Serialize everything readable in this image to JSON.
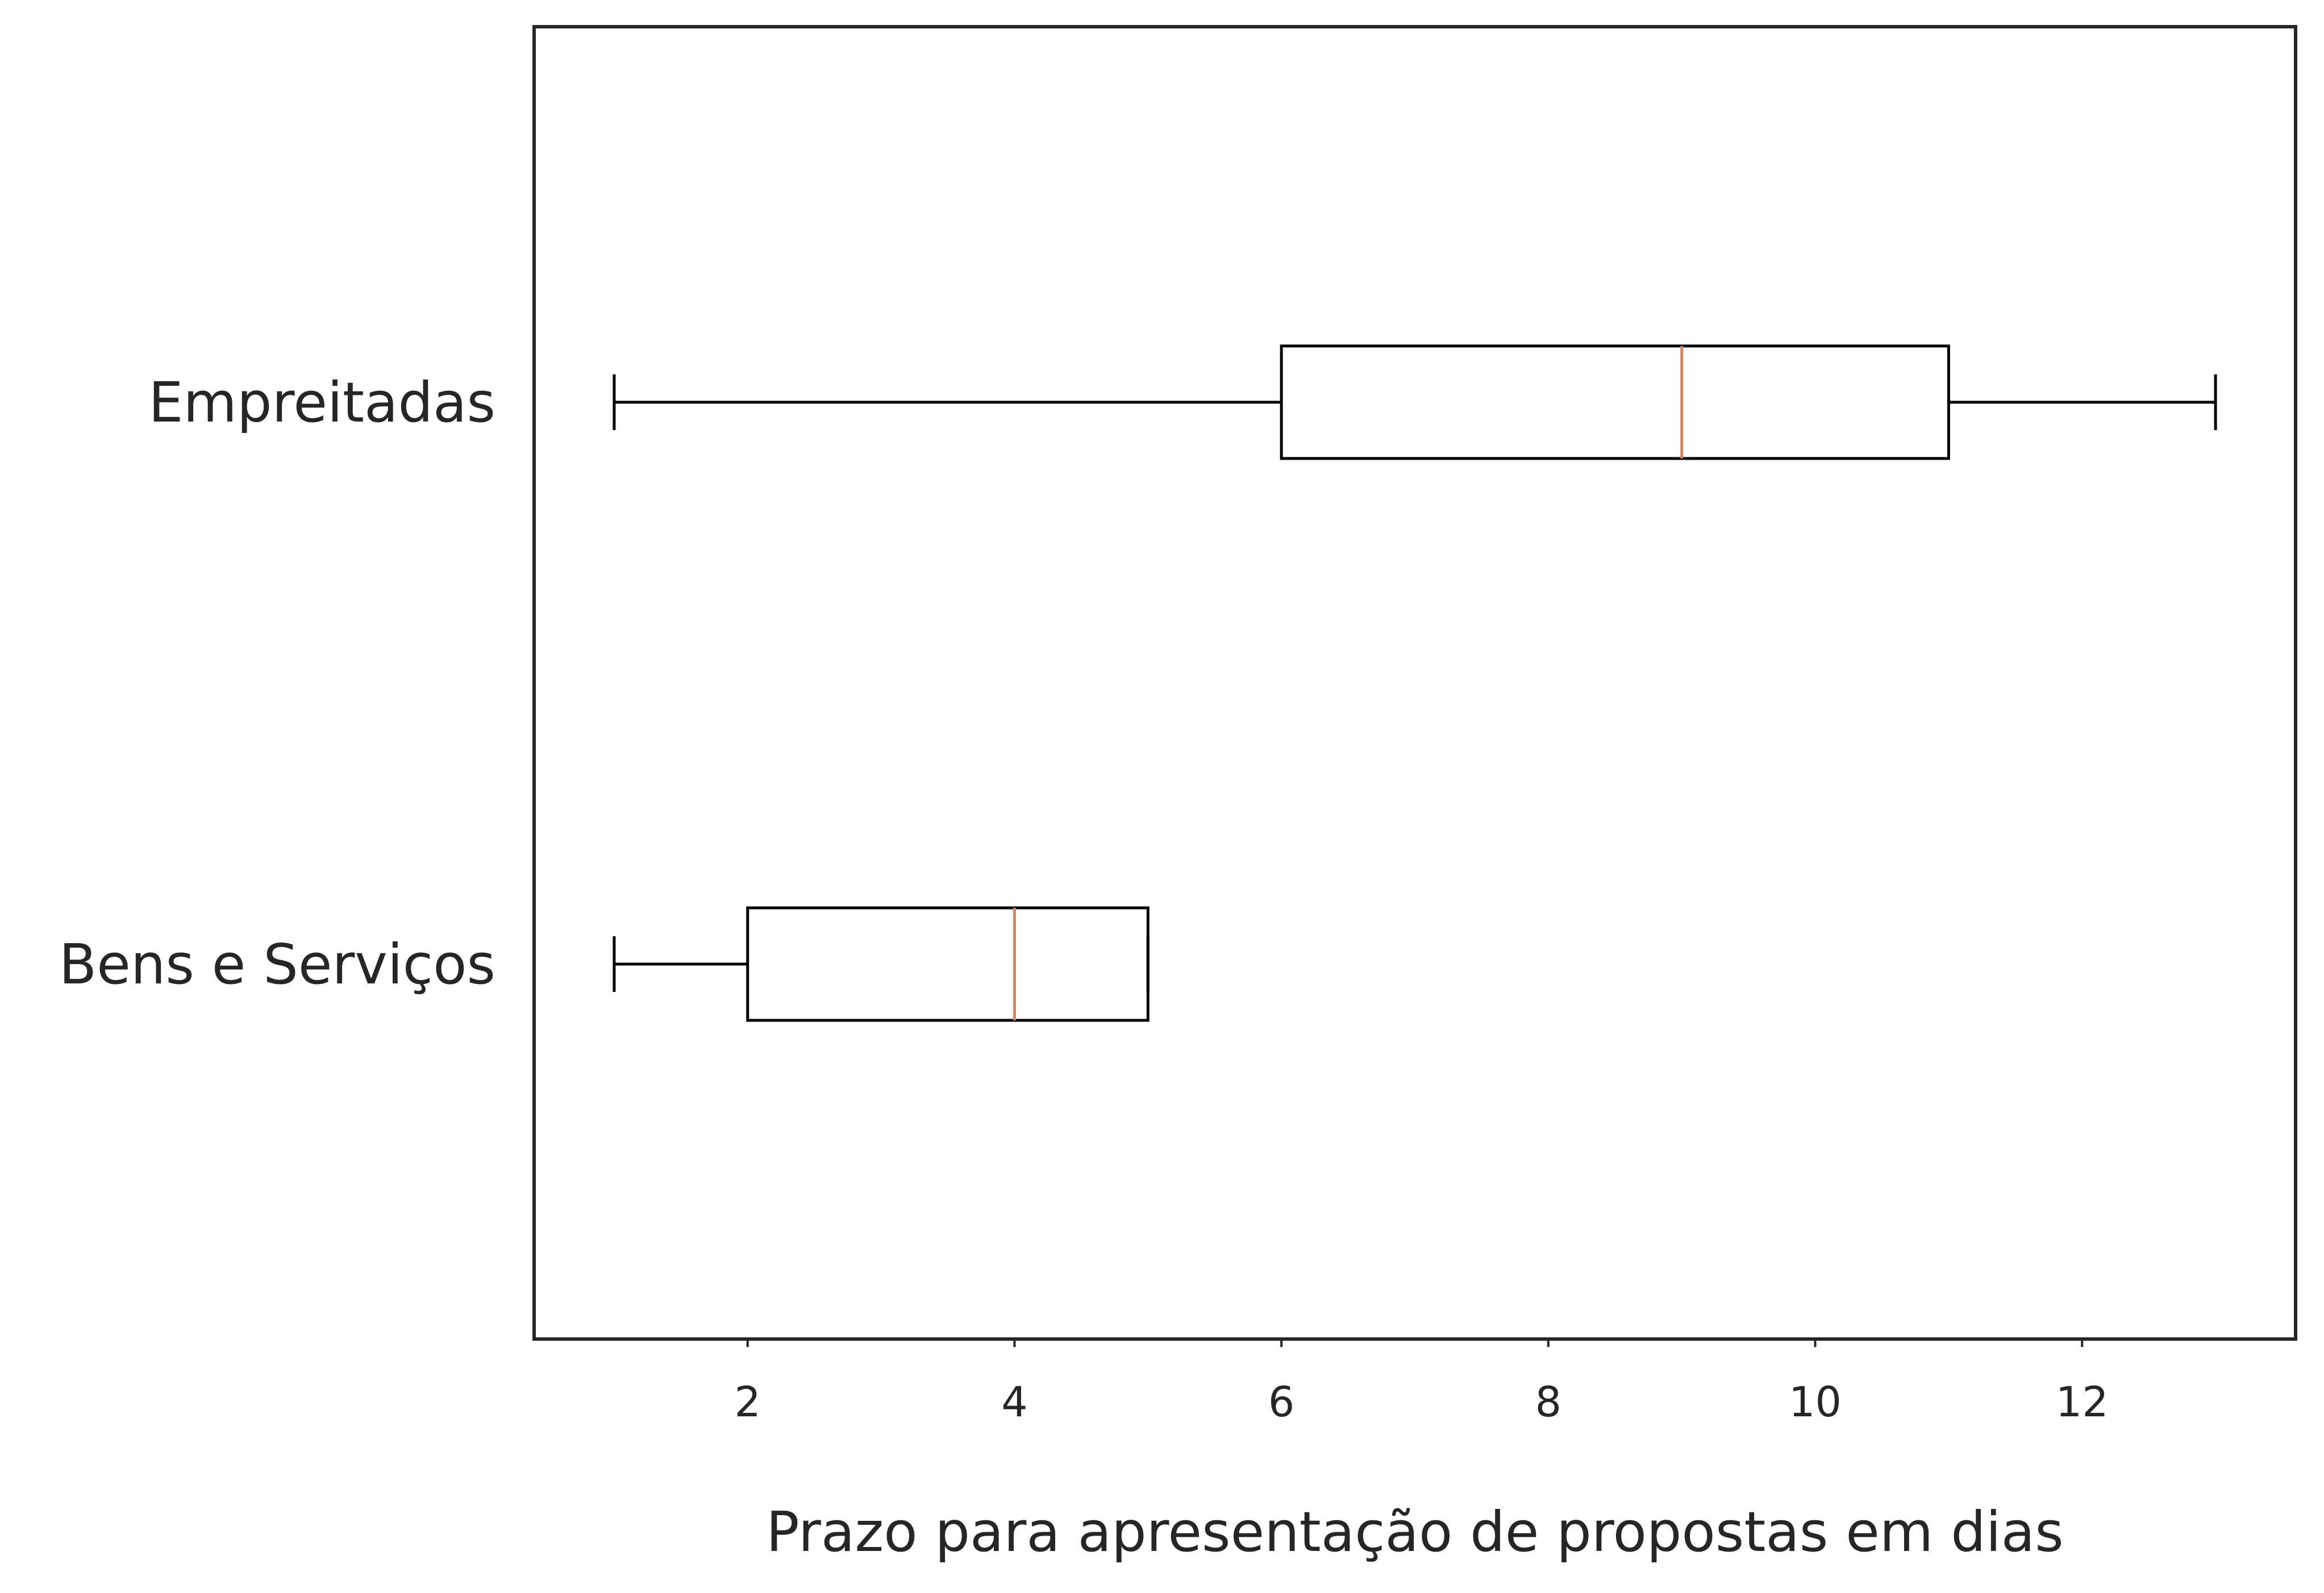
{
  "chart_data": {
    "type": "boxplot",
    "orientation": "horizontal",
    "title": "",
    "xlabel": "Prazo para apresentação de propostas em dias",
    "ylabel": "",
    "xlim": [
      0.4,
      13.6
    ],
    "xticks": [
      2,
      4,
      6,
      8,
      10,
      12
    ],
    "grid": false,
    "categories": [
      "Empreitadas",
      "Bens e Serviços"
    ],
    "boxes": [
      {
        "category": "Empreitadas",
        "whisker_low": 1,
        "q1": 6,
        "median": 9,
        "q3": 11,
        "whisker_high": 13
      },
      {
        "category": "Bens e Serviços",
        "whisker_low": 1,
        "q1": 2,
        "median": 4,
        "q3": 5,
        "whisker_high": 5
      }
    ],
    "colors": {
      "box": "#000000",
      "median": "#dd8452",
      "frame": "#262626",
      "text": "#262626"
    }
  }
}
